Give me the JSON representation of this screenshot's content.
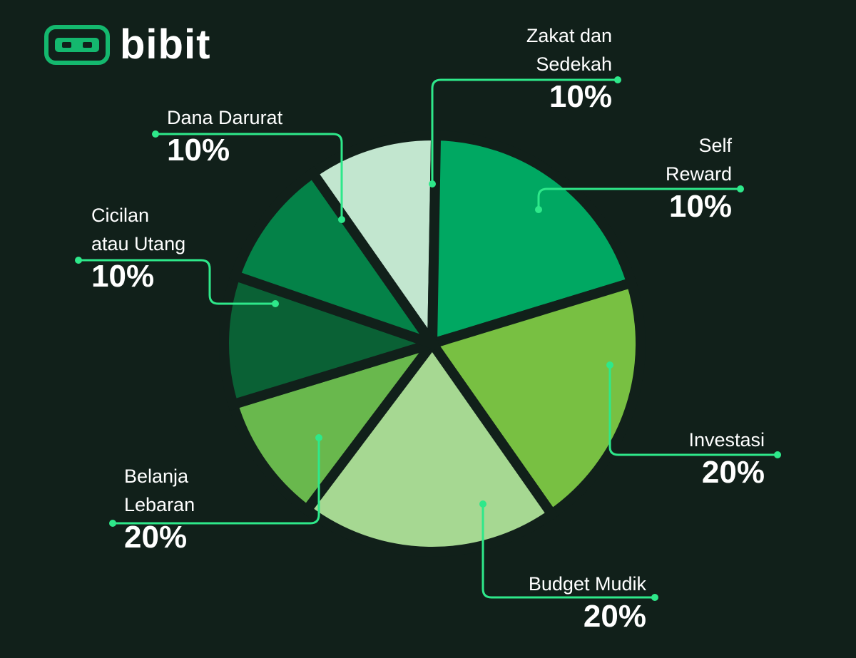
{
  "brand": {
    "name": "bibit",
    "icon": "bibit-logo-icon"
  },
  "colors": {
    "background": "#11201a",
    "leader": "#2ee88a"
  },
  "chart_data": {
    "type": "pie",
    "slices": [
      {
        "label": "Self\nReward",
        "value": 10,
        "display": "10%",
        "color": "#c2e6cf"
      },
      {
        "label": "Investasi",
        "value": 20,
        "display": "20%",
        "color": "#00a862"
      },
      {
        "label": "Budget Mudik",
        "value": 20,
        "display": "20%",
        "color": "#78c042"
      },
      {
        "label": "Belanja\nLebaran",
        "value": 20,
        "display": "20%",
        "color": "#a6d892"
      },
      {
        "label": "Cicilan\natau Utang",
        "value": 10,
        "display": "10%",
        "color": "#69b84d"
      },
      {
        "label": "Dana Darurat",
        "value": 10,
        "display": "10%",
        "color": "#0a6135"
      },
      {
        "label": "Zakat dan\nSedekah",
        "value": 10,
        "display": "10%",
        "color": "#048248"
      }
    ]
  }
}
